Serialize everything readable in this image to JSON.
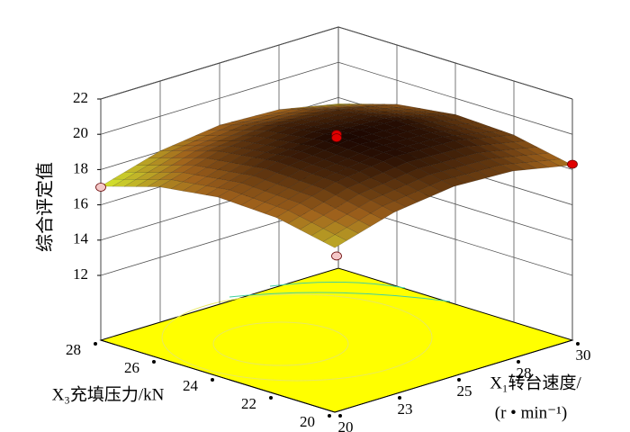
{
  "chart_data": {
    "type": "surface",
    "zlabel": "综合评定值",
    "xlabel": [
      "X₁转台速度/",
      "(r • min⁻¹)"
    ],
    "ylabel": "X₃充填压力/kN",
    "xlim": [
      20,
      30
    ],
    "xticks": [
      20,
      {
        "value": 22.5,
        "label": "23"
      },
      25,
      {
        "value": 27.5,
        "label": "28"
      },
      30
    ],
    "ylim": [
      20,
      28
    ],
    "yticks": [
      20,
      22,
      24,
      26,
      28
    ],
    "zlim": [
      12,
      22
    ],
    "zticks": [
      12,
      14,
      16,
      18,
      20,
      22
    ],
    "grid": true,
    "floor_color": "#ffff00",
    "surface": {
      "x": [
        20,
        22.5,
        25,
        27.5,
        30
      ],
      "y": [
        20,
        22,
        24,
        26,
        28
      ],
      "z": [
        [
          17.65,
          18.64,
          19.08,
          18.94,
          18.25
        ],
        [
          18.34,
          19.34,
          19.77,
          19.64,
          18.94
        ],
        [
          18.48,
          19.47,
          19.9,
          19.77,
          19.08
        ],
        [
          18.04,
          19.04,
          19.47,
          19.34,
          18.64
        ],
        [
          17.05,
          18.04,
          18.48,
          18.34,
          17.65
        ]
      ],
      "colormap": [
        "#d8f030",
        "#a0621c",
        "#1a0500"
      ]
    },
    "points": {
      "x": [
        25,
        25,
        20,
        30,
        25
      ],
      "y": [
        24,
        24,
        28,
        20,
        24
      ],
      "z": [
        20.0,
        19.8,
        17.0,
        18.3,
        13.1
      ],
      "colors": [
        "#e00000",
        "#e00000",
        "#f4c8c8",
        "#e00000",
        "#f4c8c8"
      ]
    }
  }
}
